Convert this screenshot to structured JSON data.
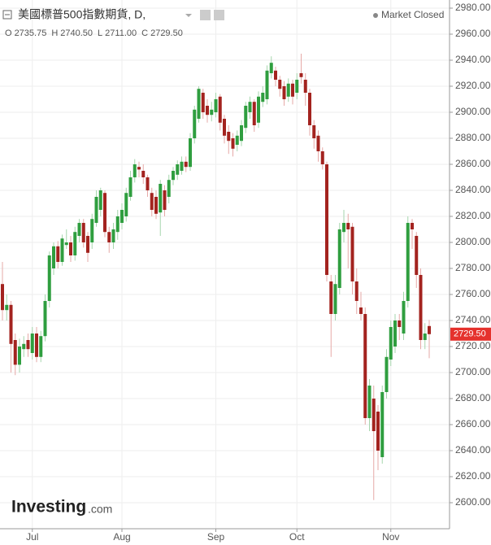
{
  "chart_data": {
    "type": "candlestick",
    "title": "美國標普500指數期貨, D,",
    "status": "Market Closed",
    "logo": {
      "name": "Investing",
      "suffix": ".com"
    },
    "last_bar": [
      {
        "key": "O",
        "value": 2735.75,
        "label": "2735.75"
      },
      {
        "key": "H",
        "value": 2740.5,
        "label": "2740.50"
      },
      {
        "key": "L",
        "value": 2711,
        "label": "2711.00"
      },
      {
        "key": "C",
        "value": 2729.5,
        "label": "2729.50"
      }
    ],
    "last_price": {
      "value": 2729.5,
      "label": "2729.50"
    },
    "up_color": "#2f9e3f",
    "down_color": "#a3231f",
    "up_wick": "#a6d6ad",
    "down_wick": "#e6a9a7",
    "grid": true,
    "ylim": [
      2580,
      2985
    ],
    "yticks": [
      {
        "value": 2600,
        "label": "2600.00"
      },
      {
        "value": 2620,
        "label": "2620.00"
      },
      {
        "value": 2640,
        "label": "2640.00"
      },
      {
        "value": 2660,
        "label": "2660.00"
      },
      {
        "value": 2680,
        "label": "2680.00"
      },
      {
        "value": 2700,
        "label": "2700.00"
      },
      {
        "value": 2720,
        "label": "2720.00"
      },
      {
        "value": 2740,
        "label": "2740.00"
      },
      {
        "value": 2760,
        "label": "2760.00"
      },
      {
        "value": 2780,
        "label": "2780.00"
      },
      {
        "value": 2800,
        "label": "2800.00"
      },
      {
        "value": 2820,
        "label": "2820.00"
      },
      {
        "value": 2840,
        "label": "2840.00"
      },
      {
        "value": 2860,
        "label": "2860.00"
      },
      {
        "value": 2880,
        "label": "2880.00"
      },
      {
        "value": 2900,
        "label": "2900.00"
      },
      {
        "value": 2920,
        "label": "2920.00"
      },
      {
        "value": 2940,
        "label": "2940.00"
      },
      {
        "value": 2960,
        "label": "2960.00"
      },
      {
        "value": 2980,
        "label": "2980.00"
      }
    ],
    "categories": [
      null,
      null,
      null,
      null,
      null,
      null,
      null,
      "Jul",
      null,
      null,
      null,
      null,
      null,
      null,
      null,
      null,
      null,
      null,
      null,
      null,
      null,
      null,
      null,
      null,
      null,
      null,
      null,
      null,
      "Aug",
      null,
      null,
      null,
      null,
      null,
      null,
      null,
      null,
      null,
      null,
      null,
      null,
      null,
      null,
      null,
      null,
      null,
      null,
      null,
      null,
      null,
      "Sep",
      null,
      null,
      null,
      null,
      null,
      null,
      null,
      null,
      null,
      null,
      null,
      null,
      null,
      null,
      null,
      null,
      null,
      null,
      "Oct",
      null,
      null,
      null,
      null,
      null,
      null,
      null,
      null,
      null,
      null,
      null,
      null,
      null,
      null,
      null,
      null,
      null,
      null,
      null,
      null,
      null,
      "Nov",
      null,
      null,
      null,
      null,
      null,
      null,
      null,
      null,
      null
    ],
    "open": [
      2768,
      2748,
      2752,
      2725,
      2706,
      2718,
      2725,
      2715,
      2730,
      2712,
      2728,
      2755,
      2780,
      2797,
      2785,
      2798,
      2800,
      2790,
      2805,
      2815,
      2805,
      2800,
      2815,
      2825,
      2838,
      2808,
      2800,
      2808,
      2815,
      2820,
      2835,
      2850,
      2858,
      2855,
      2850,
      2838,
      2835,
      2823,
      2840,
      2835,
      2848,
      2852,
      2855,
      2862,
      2858,
      2880,
      2895,
      2915,
      2905,
      2898,
      2900,
      2912,
      2895,
      2885,
      2880,
      2875,
      2878,
      2888,
      2900,
      2908,
      2892,
      2908,
      2910,
      2930,
      2932,
      2925,
      2920,
      2912,
      2922,
      2915,
      2930,
      2925,
      2915,
      2890,
      2882,
      2870,
      2860,
      2770,
      2745,
      2765,
      2808,
      2815,
      2812,
      2770,
      2750,
      2745,
      2665,
      2680,
      2670,
      2635,
      2685,
      2710,
      2720,
      2740,
      2730,
      2755,
      2815,
      2805,
      2775,
      2725,
      2735.75
    ],
    "high": [
      2785,
      2760,
      2755,
      2730,
      2726,
      2728,
      2730,
      2735,
      2735,
      2732,
      2760,
      2793,
      2800,
      2801,
      2806,
      2810,
      2805,
      2812,
      2818,
      2818,
      2808,
      2822,
      2840,
      2842,
      2840,
      2812,
      2815,
      2825,
      2830,
      2842,
      2855,
      2864,
      2862,
      2860,
      2852,
      2842,
      2840,
      2848,
      2844,
      2852,
      2858,
      2863,
      2866,
      2866,
      2884,
      2905,
      2920,
      2918,
      2910,
      2908,
      2915,
      2914,
      2898,
      2890,
      2884,
      2886,
      2894,
      2908,
      2912,
      2910,
      2916,
      2920,
      2936,
      2943,
      2935,
      2928,
      2924,
      2926,
      2925,
      2930,
      2945,
      2930,
      2918,
      2894,
      2886,
      2873,
      2862,
      2775,
      2775,
      2815,
      2825,
      2822,
      2815,
      2780,
      2762,
      2750,
      2695,
      2690,
      2675,
      2690,
      2718,
      2740,
      2745,
      2745,
      2762,
      2820,
      2818,
      2808,
      2780,
      2738,
      2740.5
    ],
    "low": [
      2740,
      2740,
      2700,
      2698,
      2700,
      2712,
      2712,
      2710,
      2708,
      2708,
      2724,
      2750,
      2775,
      2780,
      2782,
      2795,
      2785,
      2786,
      2800,
      2796,
      2785,
      2795,
      2812,
      2820,
      2804,
      2792,
      2795,
      2802,
      2810,
      2816,
      2832,
      2846,
      2850,
      2845,
      2835,
      2820,
      2818,
      2805,
      2820,
      2830,
      2844,
      2848,
      2852,
      2854,
      2855,
      2876,
      2892,
      2895,
      2892,
      2893,
      2896,
      2886,
      2876,
      2868,
      2866,
      2870,
      2874,
      2884,
      2895,
      2885,
      2888,
      2904,
      2906,
      2926,
      2920,
      2912,
      2905,
      2908,
      2906,
      2910,
      2922,
      2905,
      2882,
      2872,
      2862,
      2856,
      2770,
      2712,
      2740,
      2760,
      2800,
      2780,
      2760,
      2745,
      2740,
      2660,
      2655,
      2602,
      2625,
      2630,
      2680,
      2705,
      2715,
      2725,
      2725,
      2750,
      2795,
      2765,
      2718,
      2718,
      2711
    ],
    "close": [
      2748,
      2752,
      2722,
      2706,
      2720,
      2722,
      2718,
      2730,
      2712,
      2728,
      2755,
      2790,
      2797,
      2785,
      2803,
      2800,
      2790,
      2808,
      2815,
      2800,
      2792,
      2818,
      2835,
      2840,
      2808,
      2800,
      2810,
      2820,
      2825,
      2838,
      2850,
      2860,
      2856,
      2850,
      2840,
      2825,
      2822,
      2845,
      2825,
      2848,
      2855,
      2860,
      2862,
      2858,
      2880,
      2902,
      2918,
      2900,
      2898,
      2902,
      2910,
      2892,
      2882,
      2878,
      2872,
      2882,
      2890,
      2905,
      2908,
      2890,
      2912,
      2915,
      2932,
      2938,
      2925,
      2918,
      2910,
      2922,
      2912,
      2925,
      2927,
      2915,
      2890,
      2880,
      2870,
      2860,
      2775,
      2745,
      2768,
      2810,
      2815,
      2810,
      2770,
      2755,
      2745,
      2665,
      2690,
      2655,
      2640,
      2685,
      2712,
      2735,
      2740,
      2735,
      2755,
      2815,
      2810,
      2775,
      2725,
      2730,
      2729.5
    ]
  }
}
